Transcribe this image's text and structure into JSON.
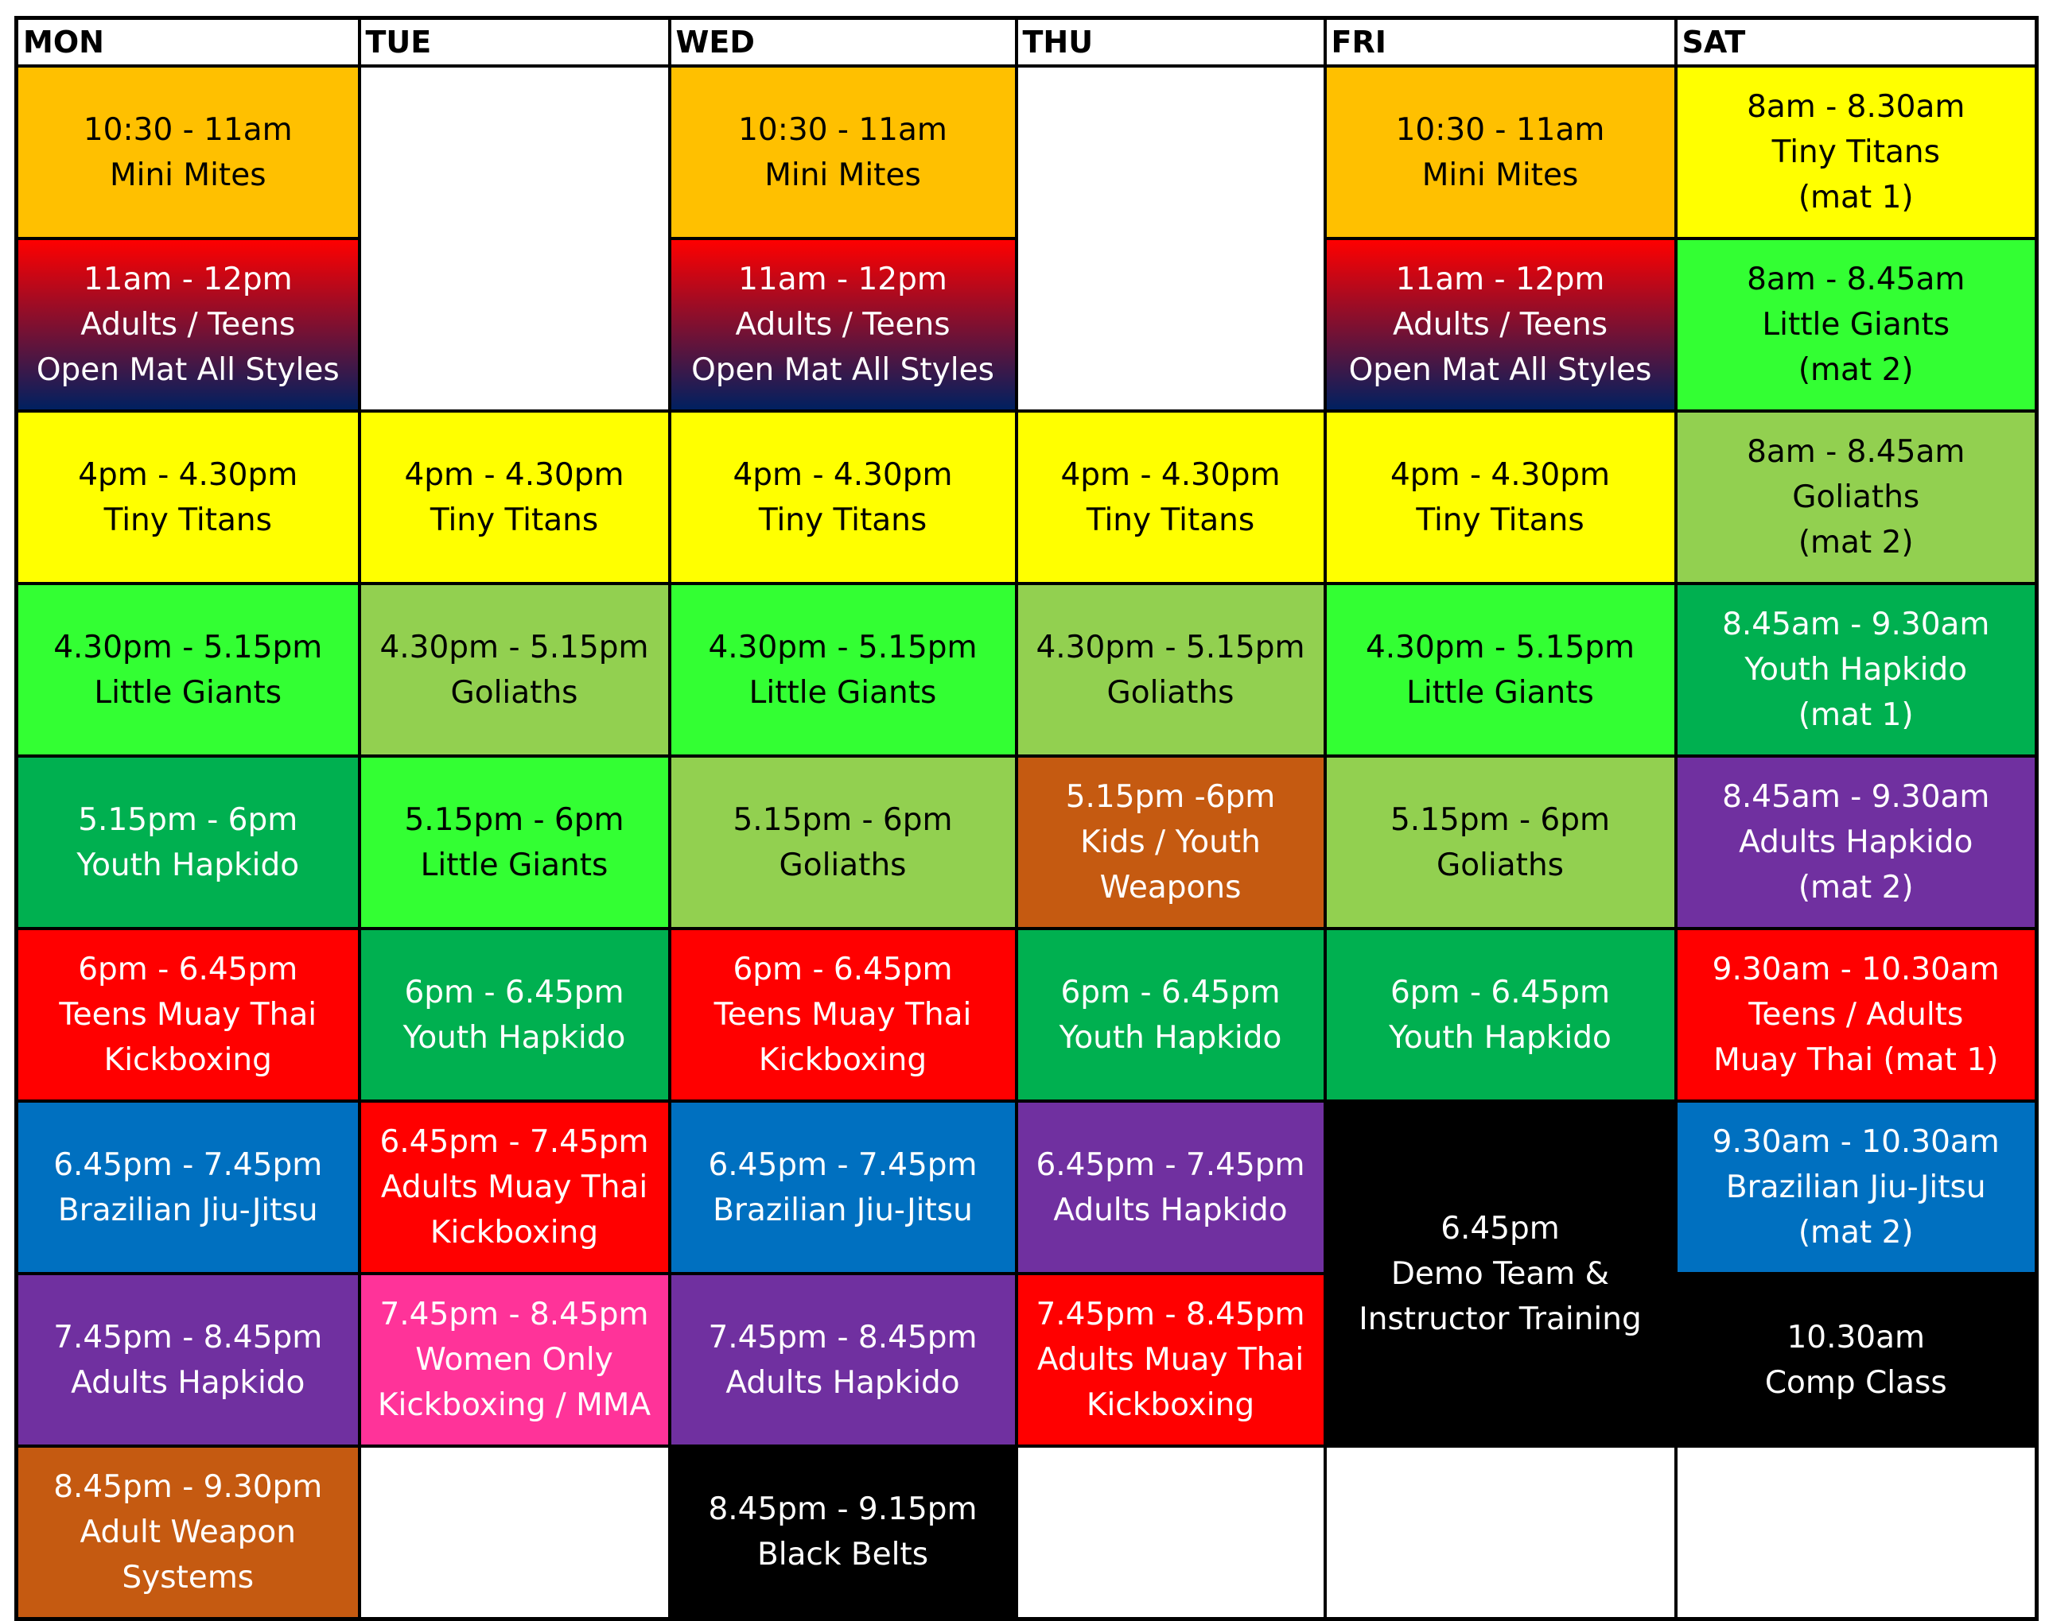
{
  "days": [
    "MON",
    "TUE",
    "WED",
    "THU",
    "FRI",
    "SAT"
  ],
  "colors": {
    "orange": "#FFC000",
    "red": "#FF0000",
    "yellow": "#FFFF00",
    "bright_green": "#33FF33",
    "light_green": "#92D050",
    "dark_green": "#00B050",
    "purple": "#7030A0",
    "blue": "#0070C0",
    "brown": "#C55A11",
    "pink": "#FF3399",
    "black": "#000000",
    "gradient_start": "#FF0000",
    "gradient_end": "#002060"
  },
  "rows": [
    [
      {
        "color": "orange",
        "lines": [
          "10:30 - 11am",
          "Mini Mites"
        ],
        "text_color": "#000000"
      },
      {
        "empty": true,
        "rowspan": 2
      },
      {
        "color": "orange",
        "lines": [
          "10:30 - 11am",
          "Mini Mites"
        ],
        "text_color": "#000000"
      },
      {
        "empty": true,
        "rowspan": 2
      },
      {
        "color": "orange",
        "lines": [
          "10:30 - 11am",
          "Mini Mites"
        ],
        "text_color": "#000000"
      },
      {
        "color": "yellow",
        "lines": [
          "8am - 8.30am",
          "Tiny Titans",
          "(mat 1)"
        ],
        "text_color": "#000000"
      }
    ],
    [
      {
        "color": "gradient",
        "lines": [
          "11am - 12pm",
          "Adults / Teens",
          "Open Mat All Styles"
        ],
        "text_color": "#FFFFFF"
      },
      null,
      {
        "color": "gradient",
        "lines": [
          "11am - 12pm",
          "Adults / Teens",
          "Open Mat All Styles"
        ],
        "text_color": "#FFFFFF"
      },
      null,
      {
        "color": "gradient",
        "lines": [
          "11am - 12pm",
          "Adults / Teens",
          "Open Mat All Styles"
        ],
        "text_color": "#FFFFFF"
      },
      {
        "color": "bright_green",
        "lines": [
          "8am - 8.45am",
          "Little Giants",
          "(mat 2)"
        ],
        "text_color": "#000000"
      }
    ],
    [
      {
        "color": "yellow",
        "lines": [
          "4pm - 4.30pm",
          "Tiny Titans"
        ],
        "text_color": "#000000"
      },
      {
        "color": "yellow",
        "lines": [
          "4pm - 4.30pm",
          "Tiny Titans"
        ],
        "text_color": "#000000"
      },
      {
        "color": "yellow",
        "lines": [
          "4pm - 4.30pm",
          "Tiny Titans"
        ],
        "text_color": "#000000"
      },
      {
        "color": "yellow",
        "lines": [
          "4pm - 4.30pm",
          "Tiny Titans"
        ],
        "text_color": "#000000"
      },
      {
        "color": "yellow",
        "lines": [
          "4pm - 4.30pm",
          "Tiny Titans"
        ],
        "text_color": "#000000"
      },
      {
        "color": "light_green",
        "lines": [
          "8am - 8.45am",
          "Goliaths",
          "(mat 2)"
        ],
        "text_color": "#000000"
      }
    ],
    [
      {
        "color": "bright_green",
        "lines": [
          "4.30pm - 5.15pm",
          "Little Giants"
        ],
        "text_color": "#000000"
      },
      {
        "color": "light_green",
        "lines": [
          "4.30pm - 5.15pm",
          "Goliaths"
        ],
        "text_color": "#000000"
      },
      {
        "color": "bright_green",
        "lines": [
          "4.30pm - 5.15pm",
          "Little Giants"
        ],
        "text_color": "#000000"
      },
      {
        "color": "light_green",
        "lines": [
          "4.30pm - 5.15pm",
          "Goliaths"
        ],
        "text_color": "#000000"
      },
      {
        "color": "bright_green",
        "lines": [
          "4.30pm - 5.15pm",
          "Little Giants"
        ],
        "text_color": "#000000"
      },
      {
        "color": "dark_green",
        "lines": [
          "8.45am - 9.30am",
          "Youth Hapkido",
          "(mat 1)"
        ],
        "text_color": "#FFFFFF"
      }
    ],
    [
      {
        "color": "dark_green",
        "lines": [
          "5.15pm - 6pm",
          "Youth Hapkido"
        ],
        "text_color": "#FFFFFF"
      },
      {
        "color": "bright_green",
        "lines": [
          "5.15pm - 6pm",
          "Little Giants"
        ],
        "text_color": "#000000"
      },
      {
        "color": "light_green",
        "lines": [
          "5.15pm - 6pm",
          "Goliaths"
        ],
        "text_color": "#000000"
      },
      {
        "color": "brown",
        "lines": [
          "5.15pm -6pm",
          "Kids / Youth",
          "Weapons"
        ],
        "text_color": "#FFFFFF"
      },
      {
        "color": "light_green",
        "lines": [
          "5.15pm - 6pm",
          "Goliaths"
        ],
        "text_color": "#000000"
      },
      {
        "color": "purple",
        "lines": [
          "8.45am - 9.30am",
          "Adults Hapkido",
          "(mat 2)"
        ],
        "text_color": "#FFFFFF"
      }
    ],
    [
      {
        "color": "red",
        "lines": [
          "6pm - 6.45pm",
          "Teens Muay Thai",
          "Kickboxing"
        ],
        "text_color": "#FFFFFF"
      },
      {
        "color": "dark_green",
        "lines": [
          "6pm - 6.45pm",
          "Youth Hapkido"
        ],
        "text_color": "#FFFFFF"
      },
      {
        "color": "red",
        "lines": [
          "6pm - 6.45pm",
          "Teens Muay Thai",
          "Kickboxing"
        ],
        "text_color": "#FFFFFF"
      },
      {
        "color": "dark_green",
        "lines": [
          "6pm - 6.45pm",
          "Youth Hapkido"
        ],
        "text_color": "#FFFFFF"
      },
      {
        "color": "dark_green",
        "lines": [
          "6pm - 6.45pm",
          "Youth Hapkido"
        ],
        "text_color": "#FFFFFF"
      },
      {
        "color": "red",
        "lines": [
          "9.30am - 10.30am",
          "Teens / Adults",
          "Muay Thai (mat 1)"
        ],
        "text_color": "#FFFFFF"
      }
    ],
    [
      {
        "color": "blue",
        "lines": [
          "6.45pm - 7.45pm",
          "Brazilian Jiu-Jitsu"
        ],
        "text_color": "#FFFFFF"
      },
      {
        "color": "red",
        "lines": [
          "6.45pm - 7.45pm",
          "Adults Muay Thai",
          "Kickboxing"
        ],
        "text_color": "#FFFFFF"
      },
      {
        "color": "blue",
        "lines": [
          "6.45pm - 7.45pm",
          "Brazilian Jiu-Jitsu"
        ],
        "text_color": "#FFFFFF"
      },
      {
        "color": "purple",
        "lines": [
          "6.45pm - 7.45pm",
          "Adults Hapkido"
        ],
        "text_color": "#FFFFFF"
      },
      {
        "color": "black",
        "lines": [
          "6.45pm",
          "Demo Team &",
          "Instructor Training"
        ],
        "text_color": "#FFFFFF",
        "rowspan": 2
      },
      {
        "color": "blue",
        "lines": [
          "9.30am - 10.30am",
          "Brazilian Jiu-Jitsu",
          "(mat 2)"
        ],
        "text_color": "#FFFFFF"
      }
    ],
    [
      {
        "color": "purple",
        "lines": [
          "7.45pm - 8.45pm",
          "Adults Hapkido"
        ],
        "text_color": "#FFFFFF"
      },
      {
        "color": "pink",
        "lines": [
          "7.45pm - 8.45pm",
          "Women Only",
          "Kickboxing / MMA"
        ],
        "text_color": "#FFFFFF"
      },
      {
        "color": "purple",
        "lines": [
          "7.45pm - 8.45pm",
          "Adults Hapkido"
        ],
        "text_color": "#FFFFFF"
      },
      {
        "color": "red",
        "lines": [
          "7.45pm - 8.45pm",
          "Adults Muay Thai",
          "Kickboxing"
        ],
        "text_color": "#FFFFFF"
      },
      null,
      {
        "color": "black",
        "lines": [
          "10.30am",
          "Comp Class"
        ],
        "text_color": "#FFFFFF"
      }
    ],
    [
      {
        "color": "brown",
        "lines": [
          "8.45pm - 9.30pm",
          "Adult Weapon",
          "Systems"
        ],
        "text_color": "#FFFFFF"
      },
      {
        "empty": true
      },
      {
        "color": "black",
        "lines": [
          "8.45pm - 9.15pm",
          "Black Belts"
        ],
        "text_color": "#FFFFFF"
      },
      {
        "empty": true
      },
      {
        "empty": true
      },
      {
        "empty": true
      }
    ]
  ]
}
